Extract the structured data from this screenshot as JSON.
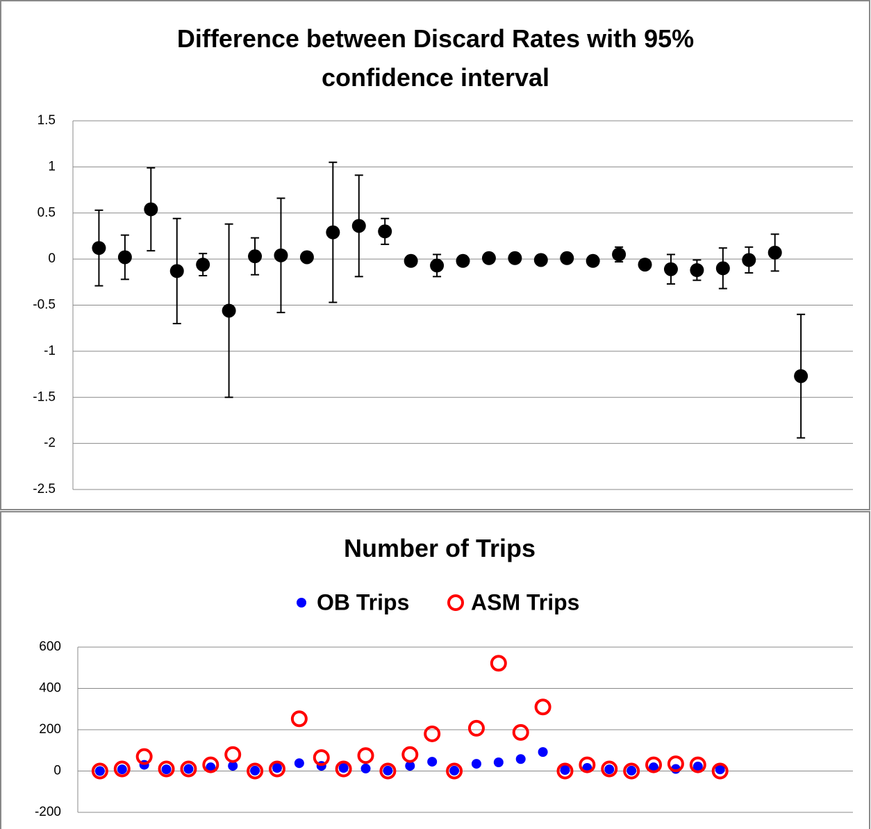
{
  "chart_data": [
    {
      "type": "errorbar",
      "title": "Difference between Discard Rates with 95% confidence interval",
      "x": [
        1,
        2,
        3,
        4,
        5,
        6,
        7,
        8,
        9,
        10,
        11,
        12,
        13,
        14,
        15,
        16,
        17,
        18,
        19,
        20,
        21,
        22,
        23,
        24,
        25,
        26,
        27,
        28
      ],
      "values": [
        0.12,
        0.02,
        0.54,
        -0.13,
        -0.06,
        -0.56,
        0.03,
        0.04,
        0.02,
        0.29,
        0.36,
        0.3,
        -0.02,
        -0.07,
        -0.02,
        0.01,
        0.01,
        -0.01,
        0.01,
        -0.02,
        0.05,
        -0.06,
        -0.11,
        -0.12,
        -0.1,
        -0.01,
        0.07,
        -1.27
      ],
      "errors": [
        0.41,
        0.24,
        0.45,
        0.57,
        0.12,
        0.94,
        0.2,
        0.62,
        0,
        0.76,
        0.55,
        0.14,
        0,
        0.12,
        0,
        0,
        0,
        0,
        0,
        0,
        0.08,
        0,
        0.16,
        0.11,
        0.22,
        0.14,
        0.2,
        0.67
      ],
      "color": "#000000",
      "xlim": [
        0,
        30
      ],
      "ylim": [
        -2.5,
        1.5
      ],
      "yticks": [
        -2.5,
        -2,
        -1.5,
        -1,
        -0.5,
        0,
        0.5,
        1,
        1.5
      ],
      "grid": true
    },
    {
      "type": "scatter",
      "title": "Number of Trips",
      "legend": "top",
      "x": [
        1,
        2,
        3,
        4,
        5,
        6,
        7,
        8,
        9,
        10,
        11,
        12,
        13,
        14,
        15,
        16,
        17,
        18,
        19,
        20,
        21,
        22,
        23,
        24,
        25,
        26,
        27,
        28,
        29
      ],
      "series": [
        {
          "name": "OB Trips",
          "color": "#0000ff",
          "marker": "filled",
          "values": [
            0,
            8,
            30,
            8,
            10,
            18,
            25,
            2,
            15,
            38,
            25,
            15,
            12,
            2,
            25,
            45,
            2,
            35,
            42,
            58,
            92,
            5,
            15,
            8,
            2,
            18,
            10,
            22,
            8
          ]
        },
        {
          "name": "ASM Trips",
          "color": "#ff0000",
          "marker": "open",
          "values": [
            0,
            10,
            70,
            10,
            10,
            30,
            80,
            0,
            10,
            253,
            65,
            10,
            75,
            0,
            80,
            180,
            0,
            207,
            522,
            187,
            310,
            0,
            30,
            10,
            0,
            30,
            35,
            30,
            0
          ]
        }
      ],
      "xlim": [
        0,
        35
      ],
      "ylim": [
        -200,
        600
      ],
      "yticks": [
        -200,
        0,
        200,
        400,
        600
      ],
      "grid": true
    }
  ]
}
